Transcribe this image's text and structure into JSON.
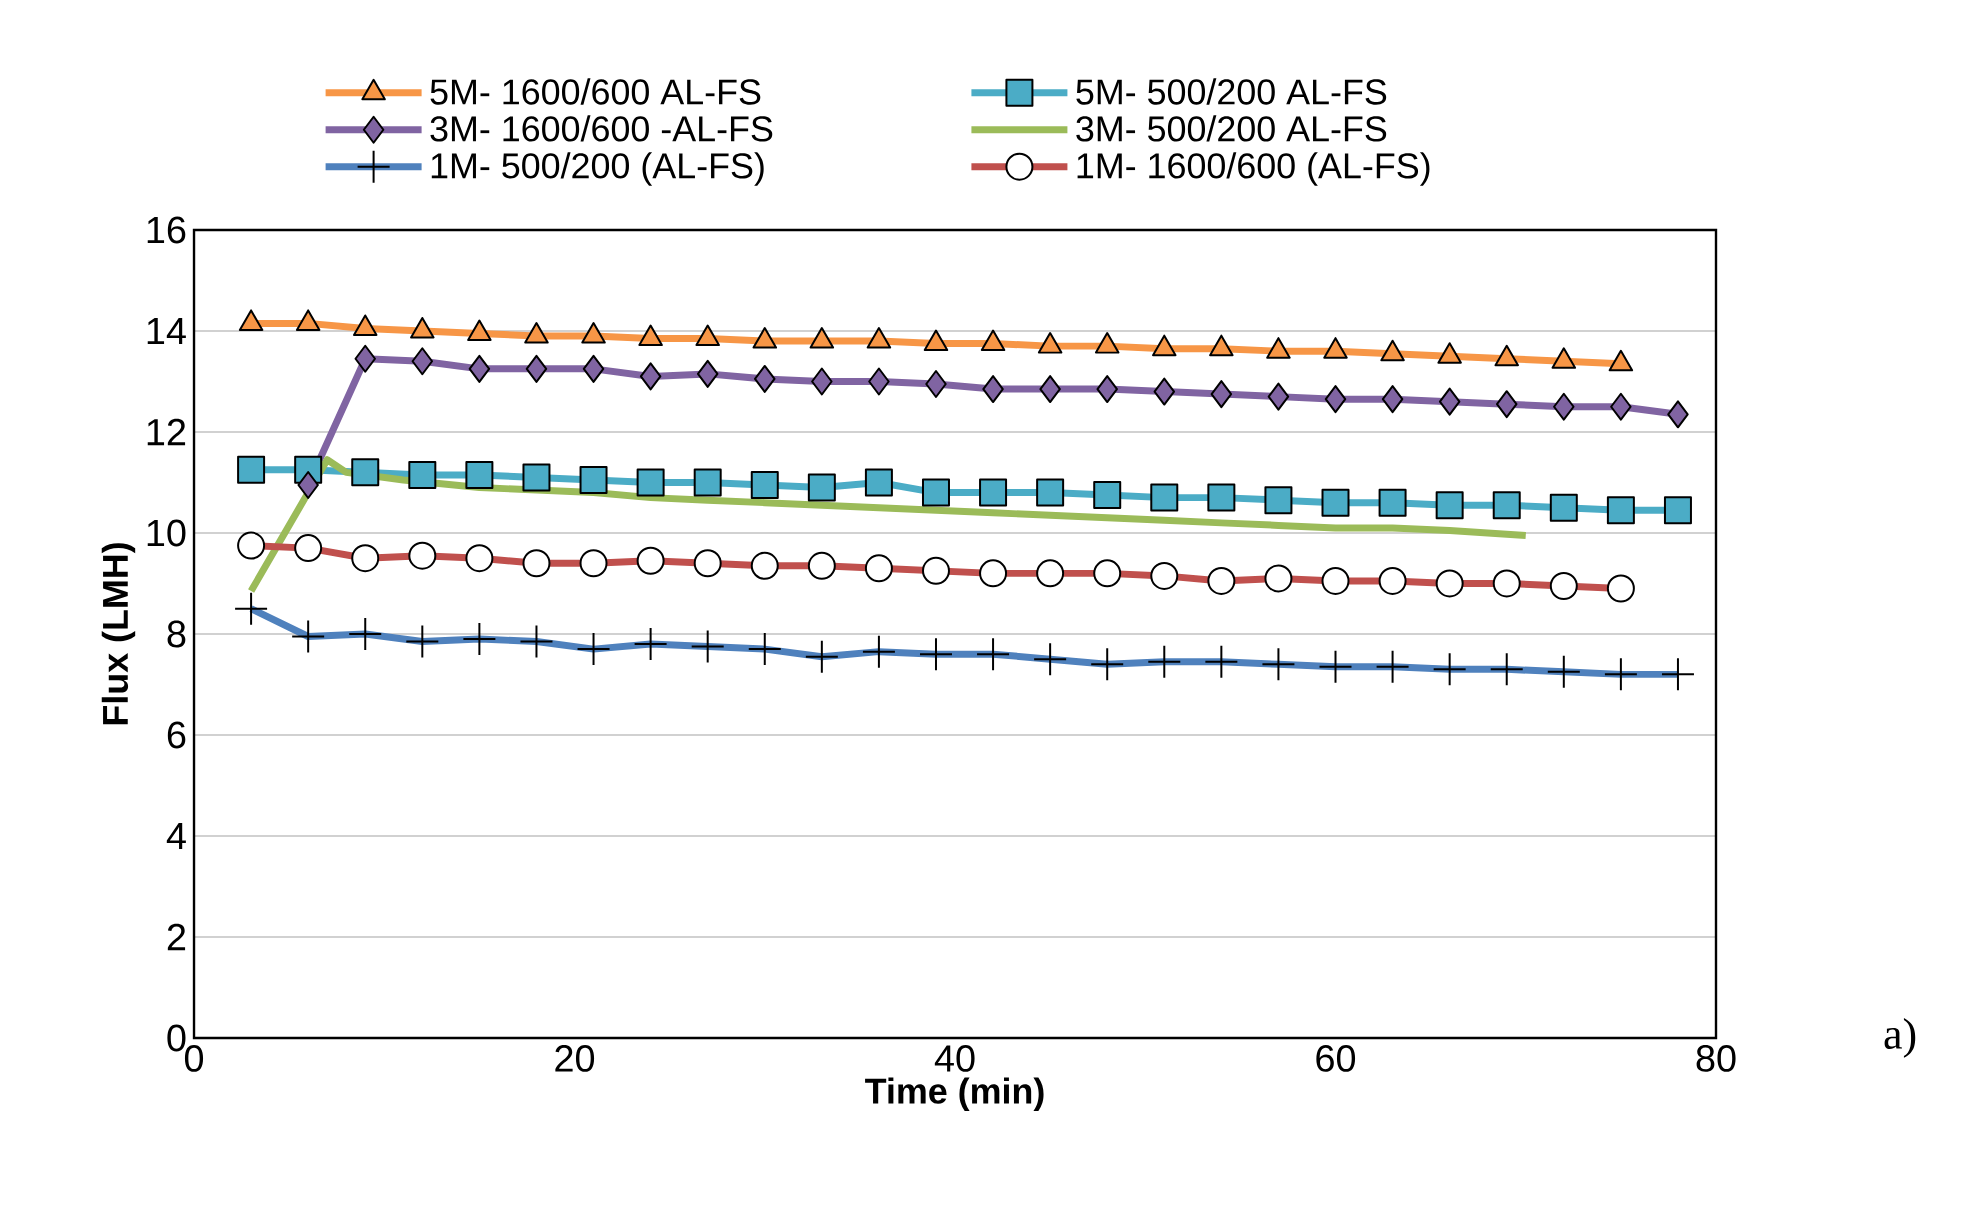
{
  "chart_data": {
    "type": "line",
    "xlabel": "Time (min)",
    "ylabel": "Flux (LMH)",
    "xlim": [
      0,
      80
    ],
    "ylim": [
      0,
      16
    ],
    "xticks": [
      0,
      20,
      40,
      60,
      80
    ],
    "yticks": [
      0,
      2,
      4,
      6,
      8,
      10,
      12,
      14,
      16
    ],
    "grid": "y",
    "legend": "top",
    "annotations": [
      "a)"
    ],
    "series": [
      {
        "name": "5M- 1600/600 AL-FS",
        "color": "#f79646",
        "marker": "triangle",
        "x": [
          3,
          6,
          9,
          12,
          15,
          18,
          21,
          24,
          27,
          30,
          33,
          36,
          39,
          42,
          45,
          48,
          51,
          54,
          57,
          60,
          63,
          66,
          69,
          72,
          75
        ],
        "values": [
          14.15,
          14.15,
          14.05,
          14.0,
          13.95,
          13.9,
          13.9,
          13.85,
          13.85,
          13.8,
          13.8,
          13.8,
          13.75,
          13.75,
          13.7,
          13.7,
          13.65,
          13.65,
          13.6,
          13.6,
          13.55,
          13.5,
          13.45,
          13.4,
          13.35
        ]
      },
      {
        "name": "5M- 500/200 AL-FS",
        "color": "#4bacc6",
        "marker": "square",
        "x": [
          3,
          6,
          9,
          12,
          15,
          18,
          21,
          24,
          27,
          30,
          33,
          36,
          39,
          42,
          45,
          48,
          51,
          54,
          57,
          60,
          63,
          66,
          69,
          72,
          75,
          78
        ],
        "values": [
          11.25,
          11.25,
          11.2,
          11.15,
          11.15,
          11.1,
          11.05,
          11.0,
          11.0,
          10.95,
          10.9,
          11.0,
          10.8,
          10.8,
          10.8,
          10.75,
          10.7,
          10.7,
          10.65,
          10.6,
          10.6,
          10.55,
          10.55,
          10.5,
          10.45,
          10.45
        ]
      },
      {
        "name": "3M- 1600/600 -AL-FS",
        "color": "#8064a2",
        "marker": "diamond",
        "x": [
          6,
          9,
          12,
          15,
          18,
          21,
          24,
          27,
          30,
          33,
          36,
          39,
          42,
          45,
          48,
          51,
          54,
          57,
          60,
          63,
          66,
          69,
          72,
          75,
          78
        ],
        "values": [
          10.95,
          13.45,
          13.4,
          13.25,
          13.25,
          13.25,
          13.1,
          13.15,
          13.05,
          13.0,
          13.0,
          12.95,
          12.85,
          12.85,
          12.85,
          12.8,
          12.75,
          12.7,
          12.65,
          12.65,
          12.6,
          12.55,
          12.5,
          12.5,
          12.35
        ]
      },
      {
        "name": "3M- 500/200 AL-FS",
        "color": "#9bbb59",
        "marker": "none",
        "x": [
          3,
          7,
          8,
          11,
          15,
          18,
          21,
          24,
          27,
          30,
          33,
          36,
          39,
          42,
          45,
          48,
          51,
          54,
          57,
          60,
          63,
          66,
          70
        ],
        "values": [
          8.85,
          11.45,
          11.2,
          11.05,
          10.9,
          10.85,
          10.8,
          10.7,
          10.65,
          10.6,
          10.55,
          10.5,
          10.45,
          10.4,
          10.35,
          10.3,
          10.25,
          10.2,
          10.15,
          10.1,
          10.1,
          10.05,
          9.95
        ]
      },
      {
        "name": "1M- 500/200 (AL-FS)",
        "color": "#4f81bd",
        "marker": "cross",
        "x": [
          3,
          6,
          9,
          12,
          15,
          18,
          21,
          24,
          27,
          30,
          33,
          36,
          39,
          42,
          45,
          48,
          51,
          54,
          57,
          60,
          63,
          66,
          69,
          72,
          75,
          78
        ],
        "values": [
          8.5,
          7.95,
          8.0,
          7.85,
          7.9,
          7.85,
          7.7,
          7.8,
          7.75,
          7.7,
          7.55,
          7.65,
          7.6,
          7.6,
          7.5,
          7.4,
          7.45,
          7.45,
          7.4,
          7.35,
          7.35,
          7.3,
          7.3,
          7.25,
          7.2,
          7.2
        ]
      },
      {
        "name": "1M- 1600/600 (AL-FS)",
        "color": "#c0504d",
        "marker": "circle",
        "x": [
          3,
          6,
          9,
          12,
          15,
          18,
          21,
          24,
          27,
          30,
          33,
          36,
          39,
          42,
          45,
          48,
          51,
          54,
          57,
          60,
          63,
          66,
          69,
          72,
          75
        ],
        "values": [
          9.75,
          9.7,
          9.5,
          9.55,
          9.5,
          9.4,
          9.4,
          9.45,
          9.4,
          9.35,
          9.35,
          9.3,
          9.25,
          9.2,
          9.2,
          9.2,
          9.15,
          9.05,
          9.1,
          9.05,
          9.05,
          9.0,
          9.0,
          8.95,
          8.9
        ]
      }
    ]
  }
}
